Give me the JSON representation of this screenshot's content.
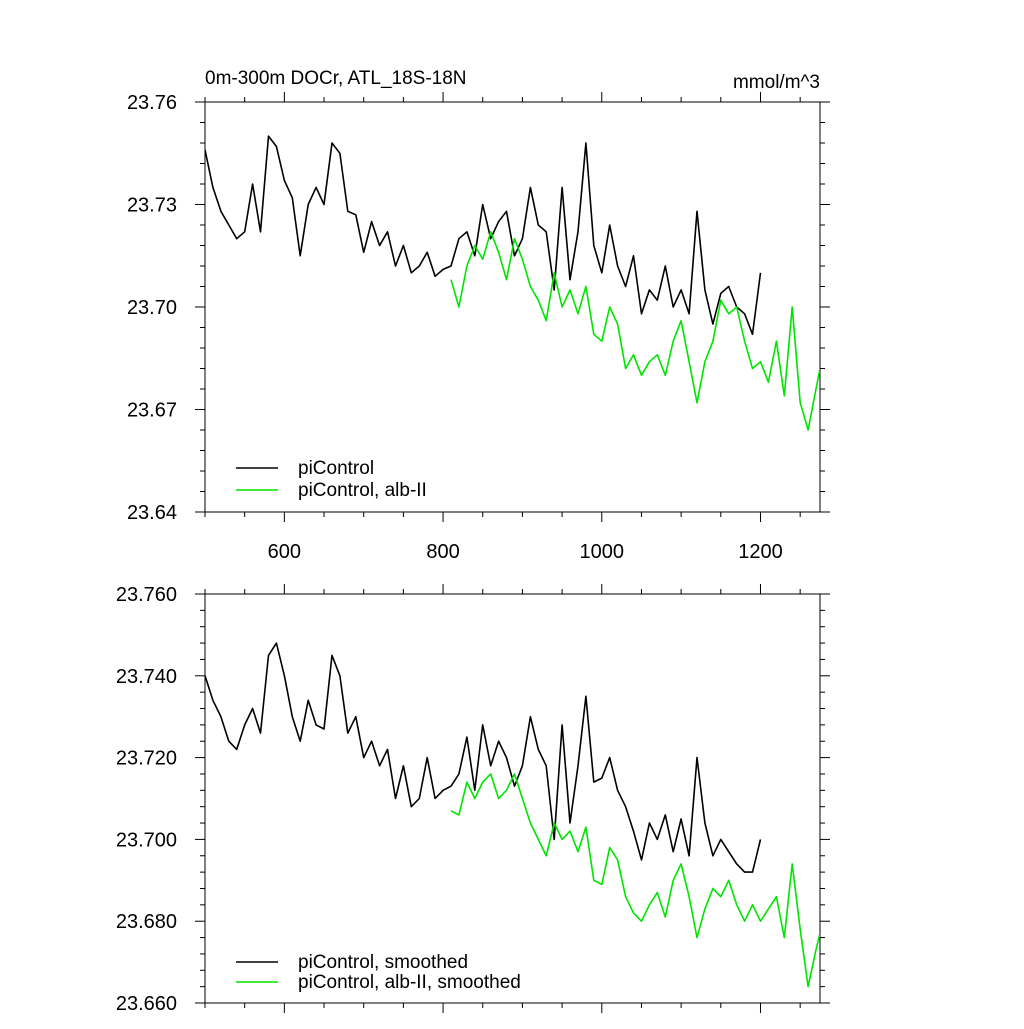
{
  "chart_data": [
    {
      "type": "line",
      "title": "0m-300m DOCr, ATL_18S-18N",
      "units": "mmol/m^3",
      "xlim": [
        500,
        1275
      ],
      "ylim": [
        23.64,
        23.76
      ],
      "x_ticks": [
        600,
        800,
        1000,
        1200
      ],
      "x_tick_labels": [
        "600",
        "800",
        "1000",
        "1200"
      ],
      "y_ticks": [
        23.64,
        23.67,
        23.7,
        23.73,
        23.76
      ],
      "y_tick_labels": [
        "23.64",
        "23.67",
        "23.70",
        "23.73",
        "23.76"
      ],
      "grid": false,
      "legend_position": "bottom-left",
      "series": [
        {
          "name": "piControl",
          "color": "#000000",
          "x": [
            500,
            510,
            520,
            530,
            540,
            550,
            560,
            570,
            580,
            590,
            600,
            610,
            620,
            630,
            640,
            650,
            660,
            670,
            680,
            690,
            700,
            710,
            720,
            730,
            740,
            750,
            760,
            770,
            780,
            790,
            800,
            810,
            820,
            830,
            840,
            850,
            860,
            870,
            880,
            890,
            900,
            910,
            920,
            930,
            940,
            950,
            960,
            970,
            980,
            990,
            1000,
            1010,
            1020,
            1030,
            1040,
            1050,
            1060,
            1070,
            1080,
            1090,
            1100,
            1110,
            1120,
            1130,
            1140,
            1150,
            1160,
            1170,
            1180,
            1190,
            1200
          ],
          "values": [
            23.746,
            23.735,
            23.728,
            23.724,
            23.72,
            23.722,
            23.736,
            23.722,
            23.75,
            23.747,
            23.737,
            23.732,
            23.715,
            23.73,
            23.735,
            23.73,
            23.748,
            23.745,
            23.728,
            23.727,
            23.716,
            23.725,
            23.718,
            23.722,
            23.712,
            23.718,
            23.71,
            23.712,
            23.716,
            23.709,
            23.711,
            23.712,
            23.72,
            23.722,
            23.715,
            23.73,
            23.72,
            23.725,
            23.728,
            23.715,
            23.72,
            23.735,
            23.724,
            23.722,
            23.705,
            23.735,
            23.708,
            23.722,
            23.748,
            23.718,
            23.71,
            23.724,
            23.712,
            23.706,
            23.715,
            23.698,
            23.705,
            23.702,
            23.712,
            23.7,
            23.705,
            23.698,
            23.728,
            23.705,
            23.695,
            23.704,
            23.706,
            23.7,
            23.698,
            23.692,
            23.71
          ]
        },
        {
          "name": "piControl, alb-II",
          "color": "#00e400",
          "x": [
            810,
            820,
            830,
            840,
            850,
            860,
            870,
            880,
            890,
            900,
            910,
            920,
            930,
            940,
            950,
            960,
            970,
            980,
            990,
            1000,
            1010,
            1020,
            1030,
            1040,
            1050,
            1060,
            1070,
            1080,
            1090,
            1100,
            1110,
            1120,
            1130,
            1140,
            1150,
            1160,
            1170,
            1180,
            1190,
            1200,
            1210,
            1220,
            1230,
            1240,
            1250,
            1260,
            1270,
            1275
          ],
          "values": [
            23.708,
            23.7,
            23.712,
            23.718,
            23.714,
            23.722,
            23.716,
            23.708,
            23.72,
            23.714,
            23.706,
            23.702,
            23.696,
            23.71,
            23.7,
            23.705,
            23.698,
            23.706,
            23.692,
            23.69,
            23.7,
            23.695,
            23.682,
            23.686,
            23.68,
            23.684,
            23.686,
            23.68,
            23.69,
            23.696,
            23.684,
            23.672,
            23.684,
            23.69,
            23.702,
            23.698,
            23.7,
            23.69,
            23.682,
            23.684,
            23.678,
            23.69,
            23.674,
            23.7,
            23.672,
            23.664,
            23.676,
            23.682
          ]
        }
      ]
    },
    {
      "type": "line",
      "title": "",
      "xlim": [
        500,
        1275
      ],
      "ylim": [
        23.66,
        23.76
      ],
      "x_ticks": [
        600,
        800,
        1000,
        1200
      ],
      "y_ticks": [
        23.66,
        23.68,
        23.7,
        23.72,
        23.74,
        23.76
      ],
      "y_tick_labels": [
        "23.660",
        "23.680",
        "23.700",
        "23.720",
        "23.740",
        "23.760"
      ],
      "grid": false,
      "legend_position": "bottom-left",
      "series": [
        {
          "name": "piControl, smoothed",
          "color": "#000000",
          "x": [
            500,
            510,
            520,
            530,
            540,
            550,
            560,
            570,
            580,
            590,
            600,
            610,
            620,
            630,
            640,
            650,
            660,
            670,
            680,
            690,
            700,
            710,
            720,
            730,
            740,
            750,
            760,
            770,
            780,
            790,
            800,
            810,
            820,
            830,
            840,
            850,
            860,
            870,
            880,
            890,
            900,
            910,
            920,
            930,
            940,
            950,
            960,
            970,
            980,
            990,
            1000,
            1010,
            1020,
            1030,
            1040,
            1050,
            1060,
            1070,
            1080,
            1090,
            1100,
            1110,
            1120,
            1130,
            1140,
            1150,
            1160,
            1170,
            1180,
            1190,
            1200
          ],
          "values": [
            23.74,
            23.734,
            23.73,
            23.724,
            23.722,
            23.728,
            23.732,
            23.726,
            23.745,
            23.748,
            23.74,
            23.73,
            23.724,
            23.734,
            23.728,
            23.727,
            23.745,
            23.74,
            23.726,
            23.73,
            23.72,
            23.724,
            23.718,
            23.722,
            23.71,
            23.718,
            23.708,
            23.71,
            23.72,
            23.71,
            23.712,
            23.713,
            23.716,
            23.725,
            23.712,
            23.728,
            23.718,
            23.724,
            23.72,
            23.713,
            23.718,
            23.73,
            23.722,
            23.718,
            23.7,
            23.728,
            23.704,
            23.718,
            23.735,
            23.714,
            23.715,
            23.72,
            23.712,
            23.708,
            23.702,
            23.695,
            23.704,
            23.7,
            23.706,
            23.697,
            23.705,
            23.696,
            23.72,
            23.704,
            23.696,
            23.7,
            23.697,
            23.694,
            23.692,
            23.692,
            23.7
          ]
        },
        {
          "name": "piControl, alb-II, smoothed",
          "color": "#00e400",
          "x": [
            810,
            820,
            830,
            840,
            850,
            860,
            870,
            880,
            890,
            900,
            910,
            920,
            930,
            940,
            950,
            960,
            970,
            980,
            990,
            1000,
            1010,
            1020,
            1030,
            1040,
            1050,
            1060,
            1070,
            1080,
            1090,
            1100,
            1110,
            1120,
            1130,
            1140,
            1150,
            1160,
            1170,
            1180,
            1190,
            1200,
            1210,
            1220,
            1230,
            1240,
            1250,
            1260,
            1270,
            1275
          ],
          "values": [
            23.707,
            23.706,
            23.714,
            23.71,
            23.714,
            23.716,
            23.71,
            23.712,
            23.716,
            23.71,
            23.704,
            23.7,
            23.696,
            23.704,
            23.7,
            23.702,
            23.697,
            23.703,
            23.69,
            23.689,
            23.698,
            23.695,
            23.686,
            23.682,
            23.68,
            23.684,
            23.687,
            23.681,
            23.69,
            23.694,
            23.686,
            23.676,
            23.683,
            23.688,
            23.686,
            23.69,
            23.684,
            23.68,
            23.684,
            23.68,
            23.683,
            23.686,
            23.676,
            23.694,
            23.678,
            23.664,
            23.673,
            23.677
          ]
        }
      ]
    }
  ]
}
